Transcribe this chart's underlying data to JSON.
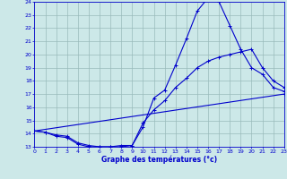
{
  "xlabel": "Graphe des températures (°c)",
  "bg_color": "#cce8e8",
  "line_color": "#0000cc",
  "grid_color": "#99bbbb",
  "xmin": 0,
  "xmax": 23,
  "ymin": 13,
  "ymax": 24,
  "line1_x": [
    0,
    1,
    2,
    3,
    4,
    5,
    6,
    7,
    8,
    9,
    10,
    11,
    12,
    13,
    14,
    15,
    16,
    17,
    18,
    19,
    20,
    21,
    22,
    23
  ],
  "line1_y": [
    14.2,
    14.1,
    13.9,
    13.8,
    13.3,
    13.1,
    13.0,
    13.0,
    13.1,
    13.1,
    14.5,
    16.7,
    17.3,
    19.2,
    21.2,
    23.3,
    24.3,
    24.0,
    22.2,
    20.4,
    19.0,
    18.5,
    17.5,
    17.2
  ],
  "line2_x": [
    0,
    1,
    2,
    3,
    4,
    5,
    6,
    7,
    8,
    9,
    10,
    11,
    12,
    13,
    14,
    15,
    16,
    17,
    18,
    19,
    20,
    21,
    22,
    23
  ],
  "line2_y": [
    14.2,
    14.1,
    13.8,
    13.7,
    13.2,
    13.0,
    13.0,
    13.0,
    13.0,
    13.1,
    14.8,
    15.8,
    16.5,
    17.5,
    18.2,
    19.0,
    19.5,
    19.8,
    20.0,
    20.2,
    20.4,
    19.0,
    18.0,
    17.5
  ],
  "line3_x": [
    0,
    23
  ],
  "line3_y": [
    14.2,
    17.0
  ]
}
